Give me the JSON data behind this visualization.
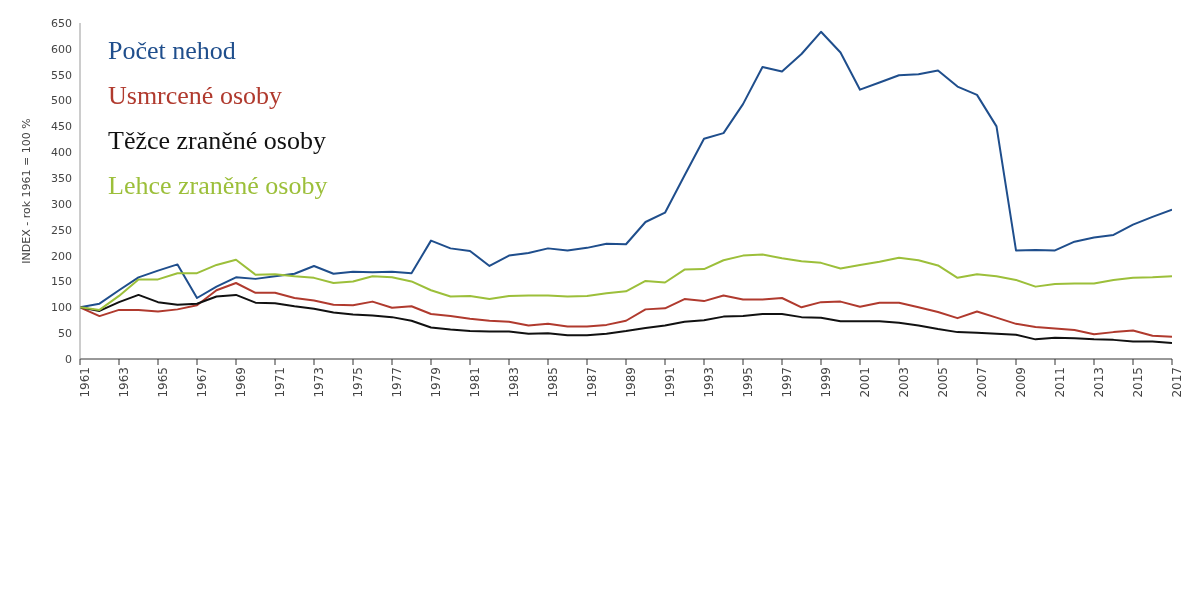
{
  "chart_data": {
    "type": "line",
    "ylabel": "INDEX - rok 1961 = 100 %",
    "x": [
      1961,
      1962,
      1963,
      1964,
      1965,
      1966,
      1967,
      1968,
      1969,
      1970,
      1971,
      1972,
      1973,
      1974,
      1975,
      1976,
      1977,
      1978,
      1979,
      1980,
      1981,
      1982,
      1983,
      1984,
      1985,
      1986,
      1987,
      1988,
      1989,
      1990,
      1991,
      1992,
      1993,
      1994,
      1995,
      1996,
      1997,
      1998,
      1999,
      2000,
      2001,
      2002,
      2003,
      2004,
      2005,
      2006,
      2007,
      2008,
      2009,
      2010,
      2011,
      2012,
      2013,
      2014,
      2015,
      2016,
      2017
    ],
    "series": [
      {
        "name": "Počet nehod",
        "color": "#1f4e8c",
        "values": [
          100,
          107,
          133,
          158,
          171,
          183,
          118,
          140,
          158,
          155,
          160,
          165,
          180,
          165,
          169,
          168,
          169,
          166,
          229,
          214,
          209,
          180,
          200,
          205,
          214,
          210,
          215,
          223,
          222,
          265,
          283,
          355,
          426,
          437,
          493,
          565,
          556,
          590,
          633,
          593,
          521,
          535,
          549,
          551,
          558,
          527,
          511,
          450,
          210,
          211,
          210,
          227,
          235,
          240,
          260,
          275,
          289
        ]
      },
      {
        "name": "Usmrcené osoby",
        "color": "#b03a2e",
        "values": [
          100,
          83,
          95,
          95,
          92,
          96,
          104,
          133,
          147,
          128,
          128,
          118,
          113,
          105,
          104,
          111,
          99,
          102,
          87,
          83,
          78,
          74,
          72,
          65,
          68,
          63,
          63,
          66,
          74,
          96,
          98,
          116,
          112,
          123,
          115,
          115,
          118,
          100,
          110,
          111,
          101,
          109,
          109,
          100,
          91,
          79,
          92,
          80,
          68,
          62,
          59,
          56,
          48,
          52,
          55,
          45,
          43
        ]
      },
      {
        "name": "Těžce zraněné osoby",
        "color": "#111111",
        "values": [
          100,
          93,
          110,
          124,
          110,
          105,
          107,
          121,
          124,
          109,
          108,
          102,
          97,
          90,
          86,
          84,
          81,
          74,
          61,
          57,
          54,
          53,
          53,
          49,
          50,
          46,
          46,
          49,
          54,
          60,
          65,
          72,
          75,
          82,
          83,
          87,
          87,
          81,
          80,
          73,
          73,
          73,
          70,
          65,
          58,
          52,
          51,
          49,
          47,
          38,
          41,
          40,
          38,
          37,
          34,
          34,
          31
        ]
      },
      {
        "name": "Lehce zraněné osoby",
        "color": "#9cbf3a",
        "values": [
          100,
          95,
          122,
          154,
          154,
          166,
          166,
          182,
          192,
          163,
          164,
          160,
          157,
          147,
          150,
          160,
          158,
          150,
          133,
          121,
          122,
          116,
          122,
          123,
          123,
          121,
          122,
          127,
          131,
          151,
          148,
          173,
          174,
          191,
          200,
          202,
          195,
          189,
          186,
          175,
          182,
          188,
          196,
          191,
          181,
          157,
          164,
          160,
          153,
          140,
          145,
          146,
          146,
          153,
          157,
          158,
          160
        ]
      }
    ],
    "xlim": [
      1961,
      2017
    ],
    "xticks": [
      1961,
      1963,
      1965,
      1967,
      1969,
      1971,
      1973,
      1975,
      1977,
      1979,
      1981,
      1983,
      1985,
      1987,
      1989,
      1991,
      1993,
      1995,
      1997,
      1999,
      2001,
      2003,
      2005,
      2007,
      2009,
      2011,
      2013,
      2015,
      2017
    ],
    "ylim": [
      0,
      650
    ],
    "yticks": [
      0,
      50,
      100,
      150,
      200,
      250,
      300,
      350,
      400,
      450,
      500,
      550,
      600,
      650
    ],
    "grid": false,
    "legend": "top left",
    "marker": "none",
    "line_style": "solid"
  }
}
